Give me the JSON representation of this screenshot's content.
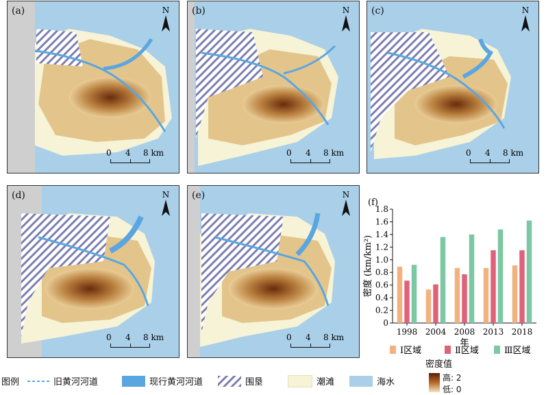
{
  "panels": [
    {
      "label": "(a)"
    },
    {
      "label": "(b)"
    },
    {
      "label": "(c)"
    },
    {
      "label": "(d)"
    },
    {
      "label": "(e)"
    }
  ],
  "north_label": "N",
  "scale": {
    "t0": "0",
    "t4": "4",
    "t8": "8 km"
  },
  "chart_panel_label": "(f)",
  "chart_data": {
    "type": "bar",
    "categories": [
      "1998",
      "2004",
      "2008",
      "2013",
      "2018"
    ],
    "series": [
      {
        "name": "Ⅰ区域",
        "color": "#f2b27f",
        "values": [
          0.89,
          0.53,
          0.87,
          0.87,
          0.91
        ]
      },
      {
        "name": "Ⅱ区域",
        "color": "#e0627a",
        "values": [
          0.67,
          0.61,
          0.77,
          1.15,
          1.15
        ]
      },
      {
        "name": "Ⅲ区域",
        "color": "#7dc8a4",
        "values": [
          0.92,
          1.36,
          1.4,
          1.48,
          1.62
        ]
      }
    ],
    "ylim": [
      0,
      1.8
    ],
    "yticks": [
      "0",
      "0.2",
      "0.4",
      "0.6",
      "0.8",
      "1.0",
      "1.2",
      "1.4",
      "1.6",
      "1.8"
    ],
    "xlabel": "年",
    "ylabel": "密度 (km/km²)"
  },
  "legend": {
    "title": "图例",
    "old_river": "旧黄河河道",
    "current_river": "现行黄河河道",
    "reclamation": "围垦",
    "tidal_flat": "潮滩",
    "sea": "海水",
    "density_title": "密度值",
    "high": "高: 2",
    "low": "低: 0",
    "colors": {
      "river": "#5aa6e0",
      "sea": "#a9cfe9",
      "tidal_flat": "#f6f3d6",
      "hatch": "#7c7fb0"
    }
  }
}
